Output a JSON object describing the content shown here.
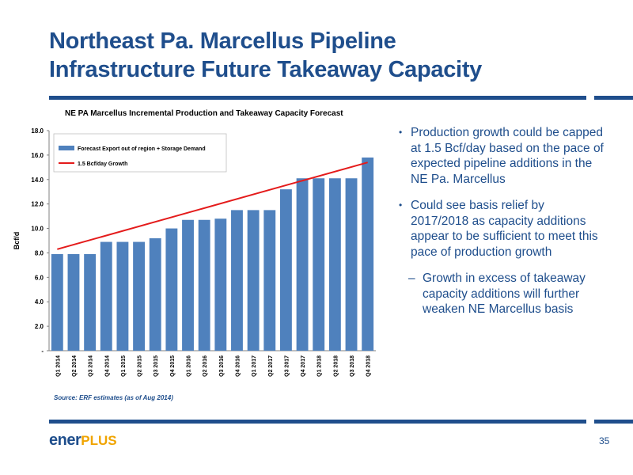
{
  "slide": {
    "title_line1": "Northeast Pa. Marcellus Pipeline",
    "title_line2": "Infrastructure Future Takeaway Capacity",
    "page_number": "35",
    "logo_text": "ener",
    "logo_plus": "PLUS"
  },
  "bullets": [
    {
      "text": "Production growth could be capped at 1.5 Bcf/day based on the pace of expected pipeline additions in the NE Pa. Marcellus"
    },
    {
      "text": "Could see basis relief by 2017/2018 as capacity additions appear to be sufficient to meet this pace of production growth",
      "sub": "Growth in excess of takeaway capacity additions will further weaken NE Marcellus basis"
    }
  ],
  "source": "Source:  ERF estimates (as of Aug 2014)",
  "colors": {
    "brand_blue": "#1f4e8c",
    "bar": "#4f81bd",
    "trend": "#e41b1b",
    "logo_accent": "#f0a400"
  },
  "chart_data": {
    "type": "bar",
    "title": "NE PA Marcellus Incremental Production and Takeaway Capacity Forecast",
    "ylabel": "Bcf/d",
    "xlabel": "",
    "ylim": [
      0,
      18
    ],
    "yticks": [
      0,
      2,
      4,
      6,
      8,
      10,
      12,
      14,
      16,
      18
    ],
    "ytick_labels": [
      "-",
      "2.0",
      "4.0",
      "6.0",
      "8.0",
      "10.0",
      "12.0",
      "14.0",
      "16.0",
      "18.0"
    ],
    "grid": false,
    "legend_position": "top-left",
    "categories": [
      "Q1 2014",
      "Q2 2014",
      "Q3 2014",
      "Q4 2014",
      "Q1 2015",
      "Q2 2015",
      "Q3 2015",
      "Q4 2015",
      "Q1 2016",
      "Q2 2016",
      "Q3 2016",
      "Q4 2016",
      "Q1 2017",
      "Q2 2017",
      "Q3 2017",
      "Q4 2017",
      "Q1 2018",
      "Q2 2018",
      "Q3 2018",
      "Q4 2018"
    ],
    "series": [
      {
        "name": "Forecast Export out of region + Storage Demand",
        "type": "bar",
        "values": [
          7.9,
          7.9,
          7.9,
          8.9,
          8.9,
          8.9,
          9.2,
          10.0,
          10.7,
          10.7,
          10.8,
          11.5,
          11.5,
          11.5,
          13.2,
          14.1,
          14.1,
          14.1,
          14.1,
          15.8
        ]
      },
      {
        "name": "1.5 Bcf/day Growth",
        "type": "line",
        "start": [
          "Q1 2014",
          8.3
        ],
        "end": [
          "Q4 2018",
          15.4
        ]
      }
    ]
  }
}
